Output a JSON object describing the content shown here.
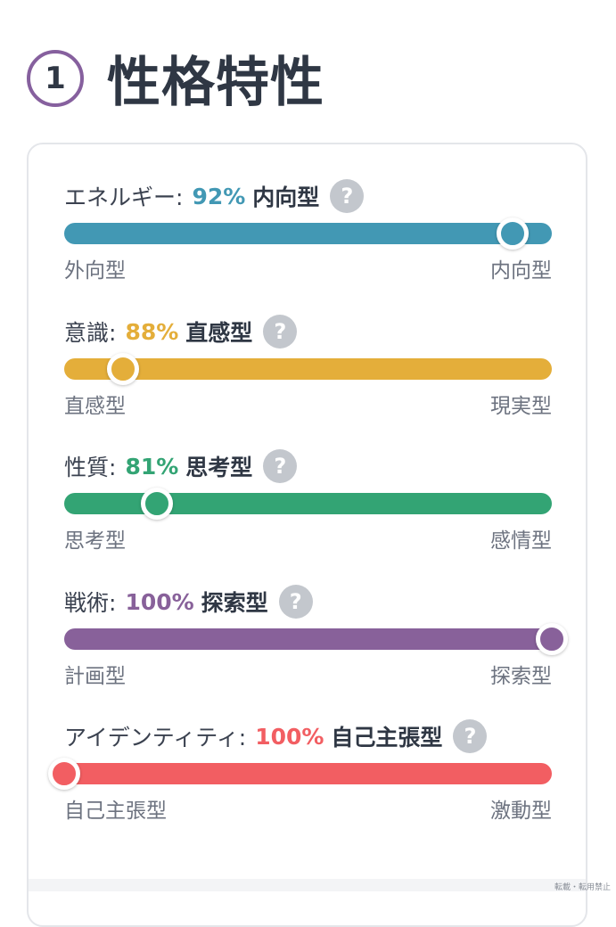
{
  "section": {
    "number": "1",
    "title": "性格特性"
  },
  "traits": [
    {
      "name": "エネルギー:",
      "percent": "92%",
      "type": "内向型",
      "help": "?",
      "left_label": "外向型",
      "right_label": "内向型",
      "color": "#4298b4",
      "knob_position": 0.92
    },
    {
      "name": "意識:",
      "percent": "88%",
      "type": "直感型",
      "help": "?",
      "left_label": "直感型",
      "right_label": "現実型",
      "color": "#e4ae3a",
      "knob_position": 0.12
    },
    {
      "name": "性質:",
      "percent": "81%",
      "type": "思考型",
      "help": "?",
      "left_label": "思考型",
      "right_label": "感情型",
      "color": "#33a474",
      "knob_position": 0.19
    },
    {
      "name": "戦術:",
      "percent": "100%",
      "type": "探索型",
      "help": "?",
      "left_label": "計画型",
      "right_label": "探索型",
      "color": "#88619a",
      "knob_position": 1.0
    },
    {
      "name": "アイデンティティ:",
      "percent": "100%",
      "type": "自己主張型",
      "help": "?",
      "left_label": "自己主張型",
      "right_label": "激動型",
      "color": "#f25e62",
      "knob_position": 0.0
    }
  ],
  "footnote": "転載・転用禁止"
}
